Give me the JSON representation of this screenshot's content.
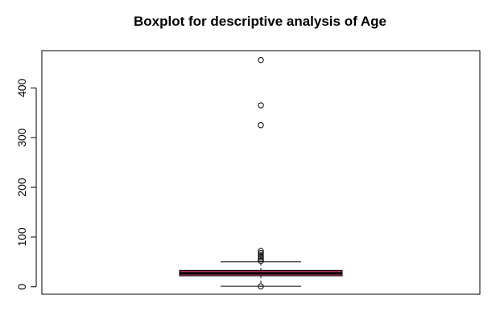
{
  "chart_data": {
    "type": "boxplot",
    "title": "Boxplot for descriptive analysis of Age",
    "xlabel": "",
    "ylabel": "",
    "ylim": [
      -15,
      475
    ],
    "yticks": [
      0,
      100,
      200,
      300,
      400
    ],
    "grid": false,
    "box": {
      "min": 1,
      "q1": 22,
      "median": 27,
      "q3": 33,
      "max": 50,
      "fill": "#b03060",
      "median_color": "#000000"
    },
    "outliers": [
      456,
      365,
      325,
      72,
      68,
      64,
      60,
      56,
      52,
      1
    ]
  }
}
